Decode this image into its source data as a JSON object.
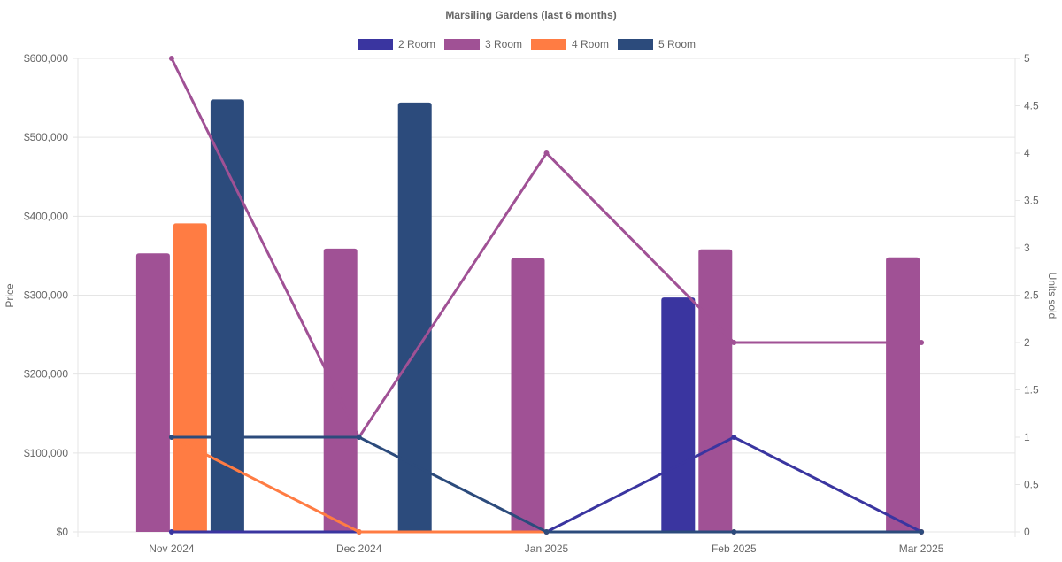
{
  "chart_data": {
    "type": "bar",
    "title": "Marsiling Gardens (last 6 months)",
    "categories": [
      "Nov 2024",
      "Dec 2024",
      "Jan 2025",
      "Feb 2025",
      "Mar 2025"
    ],
    "ylabel": "Price",
    "y2label": "Units sold",
    "ylim": [
      0,
      600000
    ],
    "y2lim": [
      0,
      5
    ],
    "yticks": [
      "$0",
      "$100,000",
      "$200,000",
      "$300,000",
      "$400,000",
      "$500,000",
      "$600,000"
    ],
    "y2ticks": [
      "0",
      "0.5",
      "1",
      "1.5",
      "2",
      "2.5",
      "3",
      "3.5",
      "4",
      "4.5",
      "5"
    ],
    "legend_position": "top",
    "grid": true,
    "series": [
      {
        "name": "2 Room",
        "color": "#3a35a0",
        "price": [
          null,
          null,
          null,
          297000,
          null
        ],
        "units": [
          0,
          0,
          0,
          1,
          0
        ]
      },
      {
        "name": "3 Room",
        "color": "#a05195",
        "price": [
          353000,
          359000,
          347000,
          358000,
          348000
        ],
        "units": [
          5,
          1,
          4,
          2,
          2
        ]
      },
      {
        "name": "4 Room",
        "color": "#ff7c43",
        "price": [
          391000,
          null,
          null,
          null,
          null
        ],
        "units": [
          1,
          0,
          0,
          0,
          0
        ]
      },
      {
        "name": "5 Room",
        "color": "#2c4b7c",
        "price": [
          548000,
          544000,
          null,
          null,
          null
        ],
        "units": [
          1,
          1,
          0,
          0,
          0
        ]
      }
    ]
  }
}
